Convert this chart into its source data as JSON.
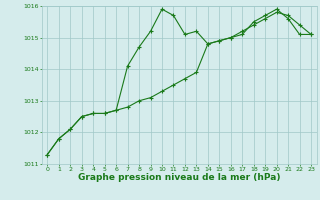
{
  "x": [
    0,
    1,
    2,
    3,
    4,
    5,
    6,
    7,
    8,
    9,
    10,
    11,
    12,
    13,
    14,
    15,
    16,
    17,
    18,
    19,
    20,
    21,
    22,
    23
  ],
  "line1": [
    1011.3,
    1011.8,
    1012.1,
    1012.5,
    1012.6,
    1012.6,
    1012.7,
    1014.1,
    1014.7,
    1015.2,
    1015.9,
    1015.7,
    1015.1,
    1015.2,
    1014.8,
    1014.9,
    1015.0,
    1015.1,
    1015.5,
    1015.7,
    1015.9,
    1015.6,
    1015.1,
    1015.1
  ],
  "line2": [
    1011.3,
    1011.8,
    1012.1,
    1012.5,
    1012.6,
    1012.6,
    1012.7,
    1012.8,
    1013.0,
    1013.1,
    1013.3,
    1013.5,
    1013.7,
    1013.9,
    1014.8,
    1014.9,
    1015.0,
    1015.2,
    1015.4,
    1015.6,
    1015.8,
    1015.7,
    1015.4,
    1015.1
  ],
  "line_color": "#1a7a1a",
  "bg_color": "#d5ecec",
  "grid_color": "#a0c8c8",
  "xlabel": "Graphe pression niveau de la mer (hPa)",
  "ylim": [
    1011,
    1016
  ],
  "xlim": [
    -0.5,
    23.5
  ],
  "yticks": [
    1011,
    1012,
    1013,
    1014,
    1015,
    1016
  ],
  "xticks": [
    0,
    1,
    2,
    3,
    4,
    5,
    6,
    7,
    8,
    9,
    10,
    11,
    12,
    13,
    14,
    15,
    16,
    17,
    18,
    19,
    20,
    21,
    22,
    23
  ],
  "marker": "+",
  "markersize": 3.5,
  "linewidth": 0.8,
  "label_fontsize": 6.5,
  "tick_fontsize": 4.5
}
